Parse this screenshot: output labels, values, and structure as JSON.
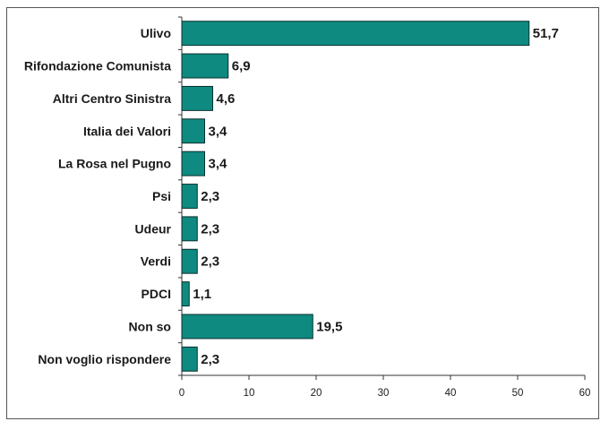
{
  "chart_data": {
    "type": "bar",
    "orientation": "horizontal",
    "categories": [
      "Ulivo",
      "Rifondazione Comunista",
      "Altri Centro Sinistra",
      "Italia dei Valori",
      "La Rosa nel Pugno",
      "Psi",
      "Udeur",
      "Verdi",
      "PDCI",
      "Non so",
      "Non voglio rispondere"
    ],
    "values": [
      51.7,
      6.9,
      4.6,
      3.4,
      3.4,
      2.3,
      2.3,
      2.3,
      1.1,
      19.5,
      2.3
    ],
    "value_labels": [
      "51,7",
      "6,9",
      "4,6",
      "3,4",
      "3,4",
      "2,3",
      "2,3",
      "2,3",
      "1,1",
      "19,5",
      "2,3"
    ],
    "xlim": [
      0,
      60
    ],
    "xticks": [
      0,
      10,
      20,
      30,
      40,
      50,
      60
    ],
    "title": "",
    "xlabel": "",
    "ylabel": "",
    "grid": false,
    "legend": "none",
    "bar_color": "#0E8A80",
    "bar_edge_color": "#0a2f2c"
  }
}
